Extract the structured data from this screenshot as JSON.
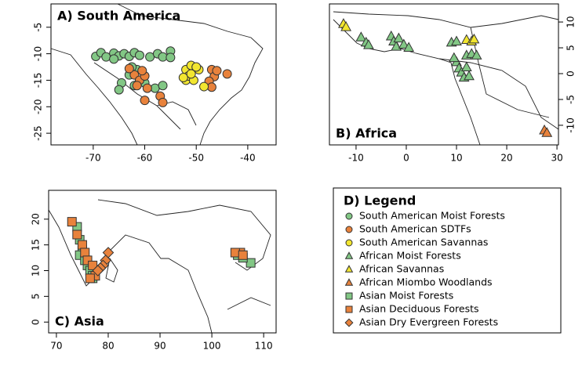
{
  "chart_data": [
    {
      "type": "scatter",
      "title": "A) South America",
      "title_corner": "top-left",
      "y_axis_side": "left",
      "xlim": [
        -78.2,
        -34.5
      ],
      "ylim": [
        -27.2,
        -0.6
      ],
      "xticks": [
        -70,
        -60,
        -50,
        -40
      ],
      "yticks": [
        -25,
        -20,
        -15,
        -10,
        -5
      ],
      "series": [
        {
          "name": "South American Moist Forests",
          "color": "#82c785",
          "marker": "circle",
          "x": [
            -69.5,
            -68.5,
            -67.5,
            -66,
            -65,
            -64,
            -63,
            -62,
            -61,
            -59,
            -57.5,
            -56.5,
            -55,
            -55,
            -61.5,
            -63,
            -64.5,
            -65,
            -62,
            -60,
            -58,
            -56.5,
            -66,
            -62.5
          ],
          "y": [
            -10.5,
            -9.8,
            -10.6,
            -9.9,
            -10.4,
            -10,
            -10.5,
            -9.8,
            -10.3,
            -10.6,
            -10,
            -10.6,
            -9.5,
            -10.7,
            -13,
            -14,
            -15.5,
            -16.8,
            -16,
            -15.5,
            -16.5,
            -16,
            -11,
            -12.5
          ]
        },
        {
          "name": "South American SDTFs",
          "color": "#e8823c",
          "marker": "circle",
          "x": [
            -62,
            -61,
            -60,
            -61.5,
            -60.5,
            -59.5,
            -60,
            -57,
            -56.5,
            -47,
            -46.5,
            -46,
            -44,
            -47.5,
            -47,
            -63
          ],
          "y": [
            -14,
            -15,
            -14.2,
            -16,
            -13.2,
            -16.5,
            -18.8,
            -18,
            -19.2,
            -13,
            -14.3,
            -13.2,
            -13.8,
            -15.2,
            -16.3,
            -12.8
          ]
        },
        {
          "name": "South American Savannas",
          "color": "#f2e630",
          "marker": "circle",
          "x": [
            -52,
            -51,
            -52,
            -51.5,
            -50.5,
            -49.5,
            -48.5,
            -52.5,
            -50,
            -51
          ],
          "y": [
            -13,
            -12.2,
            -15,
            -14.2,
            -15,
            -13,
            -16.2,
            -14.5,
            -12.5,
            -13.8
          ]
        }
      ]
    },
    {
      "type": "scatter",
      "title": "B) Africa",
      "title_corner": "bottom-left",
      "y_axis_side": "right",
      "xlim": [
        -15.3,
        30.3
      ],
      "ylim": [
        -13.8,
        13.5
      ],
      "xticks": [
        -10,
        0,
        10,
        20,
        30
      ],
      "yticks": [
        -10,
        -5,
        0,
        5,
        10
      ],
      "series": [
        {
          "name": "African Moist Forests",
          "color": "#82c785",
          "marker": "triangle",
          "x": [
            -9,
            -8,
            -7.5,
            -3,
            -2.5,
            -2,
            -1.5,
            -0.5,
            0.5,
            9,
            10,
            12,
            13,
            14,
            10,
            10.5,
            11,
            11.5,
            12,
            12.5,
            9.5
          ],
          "y": [
            7,
            6,
            5.5,
            7.2,
            6.2,
            5.2,
            6.8,
            5.6,
            5,
            6,
            6.2,
            3.5,
            3.8,
            3.5,
            2.2,
            1,
            0.2,
            -0.8,
            1.2,
            -0.5,
            3
          ]
        },
        {
          "name": "African Savannas",
          "color": "#f2e630",
          "marker": "triangle",
          "x": [
            -12.5,
            -12,
            12,
            13,
            13.5
          ],
          "y": [
            9.6,
            9,
            6.5,
            6.2,
            6.6
          ]
        },
        {
          "name": "African Miombo Woodlands",
          "color": "#e8823c",
          "marker": "triangle",
          "x": [
            27.5,
            28
          ],
          "y": [
            -11,
            -11.5
          ]
        }
      ]
    },
    {
      "type": "scatter",
      "title": "C) Asia",
      "title_corner": "bottom-left",
      "y_axis_side": "left",
      "xlim": [
        68.5,
        112.4
      ],
      "ylim": [
        -2.1,
        25.6
      ],
      "xticks": [
        70,
        80,
        90,
        100,
        110
      ],
      "yticks": [
        0,
        5,
        10,
        15,
        20
      ],
      "series": [
        {
          "name": "Asian Moist Forests",
          "color": "#82c785",
          "marker": "square",
          "x": [
            74,
            74.5,
            75,
            74.5,
            75.5,
            76,
            76.5,
            77,
            77,
            107.5,
            105,
            106
          ],
          "y": [
            18.5,
            16,
            14,
            13,
            12,
            11,
            10,
            9,
            8.5,
            11.5,
            13,
            12.5
          ]
        },
        {
          "name": "Asian Deciduous Forests",
          "color": "#e8823c",
          "marker": "square",
          "x": [
            73,
            74,
            75,
            75.5,
            76,
            77,
            77.5,
            76.5,
            105.5,
            104.5,
            106
          ],
          "y": [
            19.5,
            17,
            15,
            13.5,
            12,
            11,
            9,
            8.5,
            13.5,
            13.5,
            13
          ]
        },
        {
          "name": "Asian Dry Evergreen Forests",
          "color": "#e8823c",
          "marker": "diamond",
          "x": [
            80,
            79.5,
            79,
            78.5,
            78
          ],
          "y": [
            13.5,
            12,
            11,
            10.5,
            10
          ]
        }
      ]
    }
  ],
  "legend_title": "D) Legend"
}
